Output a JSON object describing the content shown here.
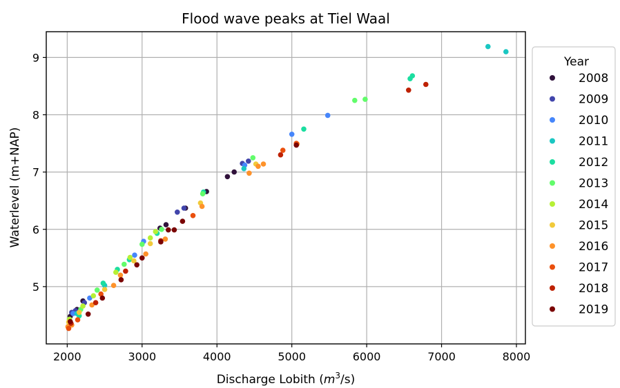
{
  "chart_data": {
    "type": "scatter",
    "title": "Flood wave peaks at Tiel Waal",
    "xlabel_main": "Discharge Lobith (",
    "xlabel_math": "m",
    "xlabel_sup": "3",
    "xlabel_tail": "/s)",
    "ylabel": "Waterlevel (m+NAP)",
    "xlim": [
      1720,
      8120
    ],
    "ylim": [
      4.0,
      9.45
    ],
    "xticks": [
      2000,
      3000,
      4000,
      5000,
      6000,
      7000,
      8000
    ],
    "yticks": [
      5,
      6,
      7,
      8,
      9
    ],
    "grid": true,
    "legend": {
      "title": "Year",
      "placement": "right"
    },
    "series": [
      {
        "name": "2008",
        "color": "#30123b",
        "points": [
          [
            2040,
            4.48
          ],
          [
            2130,
            4.6
          ],
          [
            2210,
            4.75
          ],
          [
            3240,
            6.02
          ],
          [
            3320,
            6.08
          ],
          [
            3580,
            6.37
          ],
          [
            3860,
            6.66
          ],
          [
            4140,
            6.92
          ],
          [
            4230,
            7.0
          ]
        ]
      },
      {
        "name": "2009",
        "color": "#4145ab",
        "points": [
          [
            2060,
            4.55
          ],
          [
            2110,
            4.58
          ],
          [
            2230,
            4.72
          ],
          [
            3470,
            6.3
          ],
          [
            3560,
            6.37
          ],
          [
            4340,
            7.15
          ],
          [
            4420,
            7.19
          ]
        ]
      },
      {
        "name": "2010",
        "color": "#4686fb",
        "points": [
          [
            2080,
            4.53
          ],
          [
            2300,
            4.8
          ],
          [
            2900,
            5.55
          ],
          [
            3020,
            5.79
          ],
          [
            4370,
            7.12
          ],
          [
            5000,
            7.66
          ],
          [
            5480,
            7.99
          ]
        ]
      },
      {
        "name": "2011",
        "color": "#1ac7c2",
        "points": [
          [
            2130,
            4.53
          ],
          [
            2500,
            5.02
          ],
          [
            4360,
            7.06
          ],
          [
            7620,
            9.19
          ],
          [
            7860,
            9.1
          ]
        ]
      },
      {
        "name": "2012",
        "color": "#1bdea0",
        "points": [
          [
            2160,
            4.49
          ],
          [
            2480,
            5.06
          ],
          [
            2670,
            5.3
          ],
          [
            2830,
            5.47
          ],
          [
            3200,
            5.93
          ],
          [
            3820,
            6.65
          ],
          [
            5160,
            7.75
          ],
          [
            6580,
            8.63
          ],
          [
            6610,
            8.68
          ]
        ]
      },
      {
        "name": "2013",
        "color": "#62fc6b",
        "points": [
          [
            2180,
            4.6
          ],
          [
            2400,
            4.94
          ],
          [
            2760,
            5.39
          ],
          [
            3000,
            5.74
          ],
          [
            3260,
            6.0
          ],
          [
            3810,
            6.62
          ],
          [
            4480,
            7.25
          ],
          [
            5840,
            8.25
          ],
          [
            5980,
            8.27
          ]
        ]
      },
      {
        "name": "2014",
        "color": "#b6f035",
        "points": [
          [
            2030,
            4.43
          ],
          [
            2210,
            4.66
          ],
          [
            2350,
            4.84
          ],
          [
            2650,
            5.25
          ],
          [
            2840,
            5.51
          ],
          [
            3110,
            5.85
          ],
          [
            3180,
            5.96
          ]
        ]
      },
      {
        "name": "2015",
        "color": "#f1ca3a",
        "points": [
          [
            2020,
            4.38
          ],
          [
            2160,
            4.55
          ],
          [
            2500,
            4.95
          ],
          [
            2890,
            5.45
          ],
          [
            3110,
            5.75
          ],
          [
            3780,
            6.46
          ],
          [
            4520,
            7.14
          ]
        ]
      },
      {
        "name": "2016",
        "color": "#fe922a",
        "points": [
          [
            2010,
            4.3
          ],
          [
            2060,
            4.33
          ],
          [
            2330,
            4.68
          ],
          [
            2620,
            5.02
          ],
          [
            2710,
            5.2
          ],
          [
            3050,
            5.57
          ],
          [
            3310,
            5.83
          ],
          [
            3800,
            6.4
          ],
          [
            4430,
            6.98
          ],
          [
            4550,
            7.1
          ],
          [
            4620,
            7.14
          ],
          [
            5070,
            7.49
          ]
        ]
      },
      {
        "name": "2017",
        "color": "#ea4f0d",
        "points": [
          [
            2020,
            4.27
          ],
          [
            2140,
            4.42
          ],
          [
            2450,
            4.87
          ],
          [
            3680,
            6.24
          ],
          [
            4880,
            7.38
          ],
          [
            5060,
            7.5
          ]
        ]
      },
      {
        "name": "2018",
        "color": "#be2102",
        "points": [
          [
            2050,
            4.36
          ],
          [
            2380,
            4.72
          ],
          [
            2780,
            5.27
          ],
          [
            3250,
            5.8
          ],
          [
            4850,
            7.3
          ],
          [
            6560,
            8.43
          ],
          [
            6790,
            8.53
          ]
        ]
      },
      {
        "name": "2019",
        "color": "#7a0403",
        "points": [
          [
            2040,
            4.39
          ],
          [
            2280,
            4.52
          ],
          [
            2470,
            4.8
          ],
          [
            2720,
            5.12
          ],
          [
            2930,
            5.38
          ],
          [
            3000,
            5.5
          ],
          [
            3250,
            5.78
          ],
          [
            3350,
            5.99
          ],
          [
            3430,
            5.99
          ],
          [
            3540,
            6.14
          ],
          [
            5060,
            7.47
          ]
        ]
      }
    ]
  }
}
